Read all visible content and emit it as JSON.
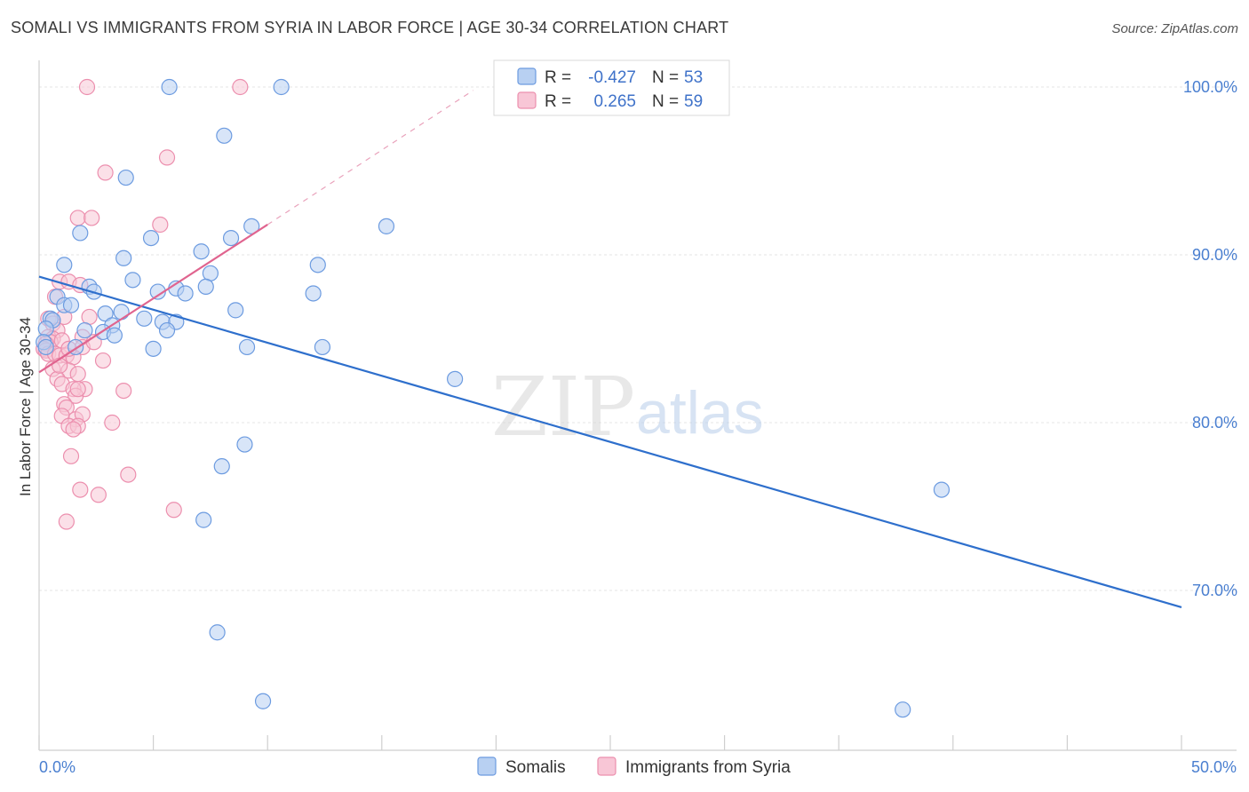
{
  "title": "SOMALI VS IMMIGRANTS FROM SYRIA IN LABOR FORCE | AGE 30-34 CORRELATION CHART",
  "source": "Source: ZipAtlas.com",
  "watermark": {
    "zip": "ZIP",
    "atlas": "atlas"
  },
  "chart_data": {
    "type": "scatter",
    "ylabel": "In Labor Force | Age 30-34",
    "xlim": [
      0,
      50
    ],
    "ylim": [
      61.5,
      101.5
    ],
    "x_tick_labels": [
      {
        "value": 0,
        "label": "0.0%"
      },
      {
        "value": 50,
        "label": "50.0%"
      }
    ],
    "y_tick_labels": [
      {
        "value": 100,
        "label": "100.0%"
      },
      {
        "value": 90,
        "label": "90.0%"
      },
      {
        "value": 80,
        "label": "80.0%"
      },
      {
        "value": 70,
        "label": "70.0%"
      }
    ],
    "legend": [
      {
        "r_label": "R =",
        "r_value": "-0.427",
        "n_label": "N =",
        "n_value": "53"
      },
      {
        "r_label": "R =",
        "r_value": "0.265",
        "n_label": "N =",
        "n_value": "59"
      }
    ],
    "series": [
      {
        "name": "Somalis",
        "color": "#6c9be0",
        "fill": "#b8d0f2",
        "trend": {
          "x": [
            0,
            50
          ],
          "y": [
            88.7,
            69.0
          ],
          "style": "solid"
        },
        "points": [
          [
            5.7,
            100.0
          ],
          [
            10.6,
            100.0
          ],
          [
            8.1,
            97.1
          ],
          [
            3.8,
            94.6
          ],
          [
            1.8,
            91.3
          ],
          [
            4.9,
            91.0
          ],
          [
            9.3,
            91.7
          ],
          [
            8.4,
            91.0
          ],
          [
            15.2,
            91.7
          ],
          [
            7.1,
            90.2
          ],
          [
            3.7,
            89.8
          ],
          [
            1.1,
            89.4
          ],
          [
            12.2,
            89.4
          ],
          [
            4.1,
            88.5
          ],
          [
            7.5,
            88.9
          ],
          [
            2.2,
            88.1
          ],
          [
            2.4,
            87.8
          ],
          [
            5.2,
            87.8
          ],
          [
            6.0,
            88.0
          ],
          [
            6.4,
            87.7
          ],
          [
            7.3,
            88.1
          ],
          [
            12.0,
            87.7
          ],
          [
            0.8,
            87.5
          ],
          [
            1.1,
            87.0
          ],
          [
            1.4,
            87.0
          ],
          [
            2.9,
            86.5
          ],
          [
            3.6,
            86.6
          ],
          [
            8.6,
            86.7
          ],
          [
            0.5,
            86.2
          ],
          [
            0.6,
            86.1
          ],
          [
            4.6,
            86.2
          ],
          [
            5.4,
            86.0
          ],
          [
            6.0,
            86.0
          ],
          [
            3.2,
            85.8
          ],
          [
            2.0,
            85.5
          ],
          [
            2.8,
            85.4
          ],
          [
            3.3,
            85.2
          ],
          [
            5.6,
            85.5
          ],
          [
            0.3,
            85.6
          ],
          [
            0.2,
            84.8
          ],
          [
            0.3,
            84.5
          ],
          [
            1.6,
            84.5
          ],
          [
            5.0,
            84.4
          ],
          [
            9.1,
            84.5
          ],
          [
            12.4,
            84.5
          ],
          [
            18.2,
            82.6
          ],
          [
            9.0,
            78.7
          ],
          [
            8.0,
            77.4
          ],
          [
            7.2,
            74.2
          ],
          [
            39.5,
            76.0
          ],
          [
            7.8,
            67.5
          ],
          [
            9.8,
            63.4
          ],
          [
            37.8,
            62.9
          ]
        ]
      },
      {
        "name": "Immigrants from Syria",
        "color": "#ec8fae",
        "fill": "#f8c6d6",
        "trend": {
          "x": [
            0,
            10
          ],
          "y": [
            83.0,
            91.8
          ],
          "style": "solid"
        },
        "trend_ext": {
          "x": [
            10,
            19
          ],
          "y": [
            91.8,
            99.8
          ],
          "style": "dashed"
        },
        "points": [
          [
            2.1,
            100.0
          ],
          [
            8.8,
            100.0
          ],
          [
            5.6,
            95.8
          ],
          [
            2.9,
            94.9
          ],
          [
            1.7,
            92.2
          ],
          [
            2.3,
            92.2
          ],
          [
            5.3,
            91.8
          ],
          [
            0.9,
            88.4
          ],
          [
            1.3,
            88.4
          ],
          [
            1.8,
            88.2
          ],
          [
            0.7,
            87.5
          ],
          [
            1.1,
            86.3
          ],
          [
            0.4,
            86.2
          ],
          [
            2.2,
            86.3
          ],
          [
            0.6,
            85.9
          ],
          [
            0.8,
            85.5
          ],
          [
            1.9,
            85.1
          ],
          [
            0.4,
            85.1
          ],
          [
            0.6,
            85.0
          ],
          [
            0.5,
            84.8
          ],
          [
            0.3,
            84.7
          ],
          [
            1.9,
            84.5
          ],
          [
            0.2,
            84.4
          ],
          [
            0.3,
            84.3
          ],
          [
            0.4,
            84.1
          ],
          [
            0.7,
            84.1
          ],
          [
            0.9,
            84.0
          ],
          [
            1.2,
            84.0
          ],
          [
            1.5,
            83.9
          ],
          [
            2.8,
            83.7
          ],
          [
            0.6,
            83.2
          ],
          [
            1.3,
            83.1
          ],
          [
            1.7,
            82.9
          ],
          [
            0.8,
            82.6
          ],
          [
            1.0,
            82.3
          ],
          [
            2.0,
            82.0
          ],
          [
            1.5,
            82.0
          ],
          [
            3.7,
            81.9
          ],
          [
            1.6,
            81.6
          ],
          [
            1.1,
            81.1
          ],
          [
            1.2,
            80.9
          ],
          [
            1.0,
            80.4
          ],
          [
            1.6,
            80.2
          ],
          [
            1.9,
            80.5
          ],
          [
            3.2,
            80.0
          ],
          [
            1.3,
            79.8
          ],
          [
            1.7,
            79.8
          ],
          [
            1.5,
            79.6
          ],
          [
            1.4,
            78.0
          ],
          [
            3.9,
            76.9
          ],
          [
            1.8,
            76.0
          ],
          [
            2.6,
            75.7
          ],
          [
            5.9,
            74.8
          ],
          [
            1.2,
            74.1
          ],
          [
            1.0,
            84.9
          ],
          [
            0.9,
            83.4
          ],
          [
            1.3,
            84.4
          ],
          [
            1.7,
            82.0
          ],
          [
            2.4,
            84.8
          ]
        ]
      }
    ]
  }
}
